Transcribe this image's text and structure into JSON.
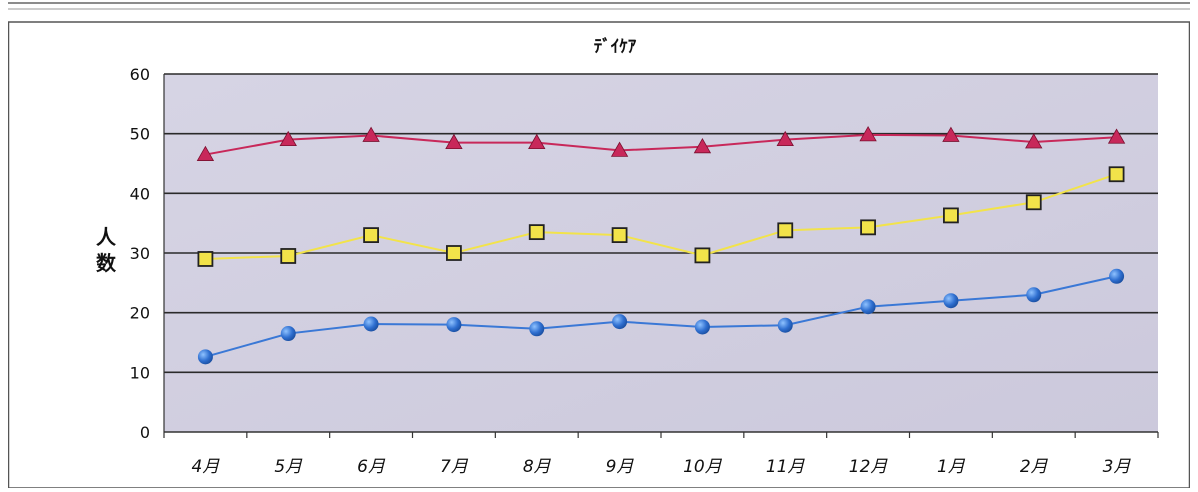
{
  "chart_data": {
    "type": "line",
    "title": "ﾃﾞｲｹｱ",
    "ylabel": "人数",
    "xlabel": "",
    "categories": [
      "4月",
      "5月",
      "6月",
      "7月",
      "8月",
      "9月",
      "10月",
      "11月",
      "12月",
      "1月",
      "2月",
      "3月"
    ],
    "ylim": [
      0,
      60
    ],
    "yticks": [
      0,
      10,
      20,
      30,
      40,
      50,
      60
    ],
    "grid": true,
    "legend": "none",
    "series": [
      {
        "values": [
          46.5,
          49,
          49.7,
          48.5,
          48.5,
          47.2,
          47.8,
          49,
          49.8,
          49.7,
          48.6,
          49.4
        ],
        "color": "#c8285a",
        "marker": "triangle"
      },
      {
        "values": [
          29,
          29.5,
          33,
          30,
          33.5,
          33,
          29.6,
          33.8,
          34.3,
          36.3,
          38.5,
          43.2
        ],
        "color": "#f2e34a",
        "marker": "square"
      },
      {
        "values": [
          12.6,
          16.5,
          18.1,
          18,
          17.3,
          18.5,
          17.6,
          17.9,
          21,
          22,
          23,
          26.1
        ],
        "color": "#3a78d6",
        "marker": "circle"
      }
    ]
  }
}
